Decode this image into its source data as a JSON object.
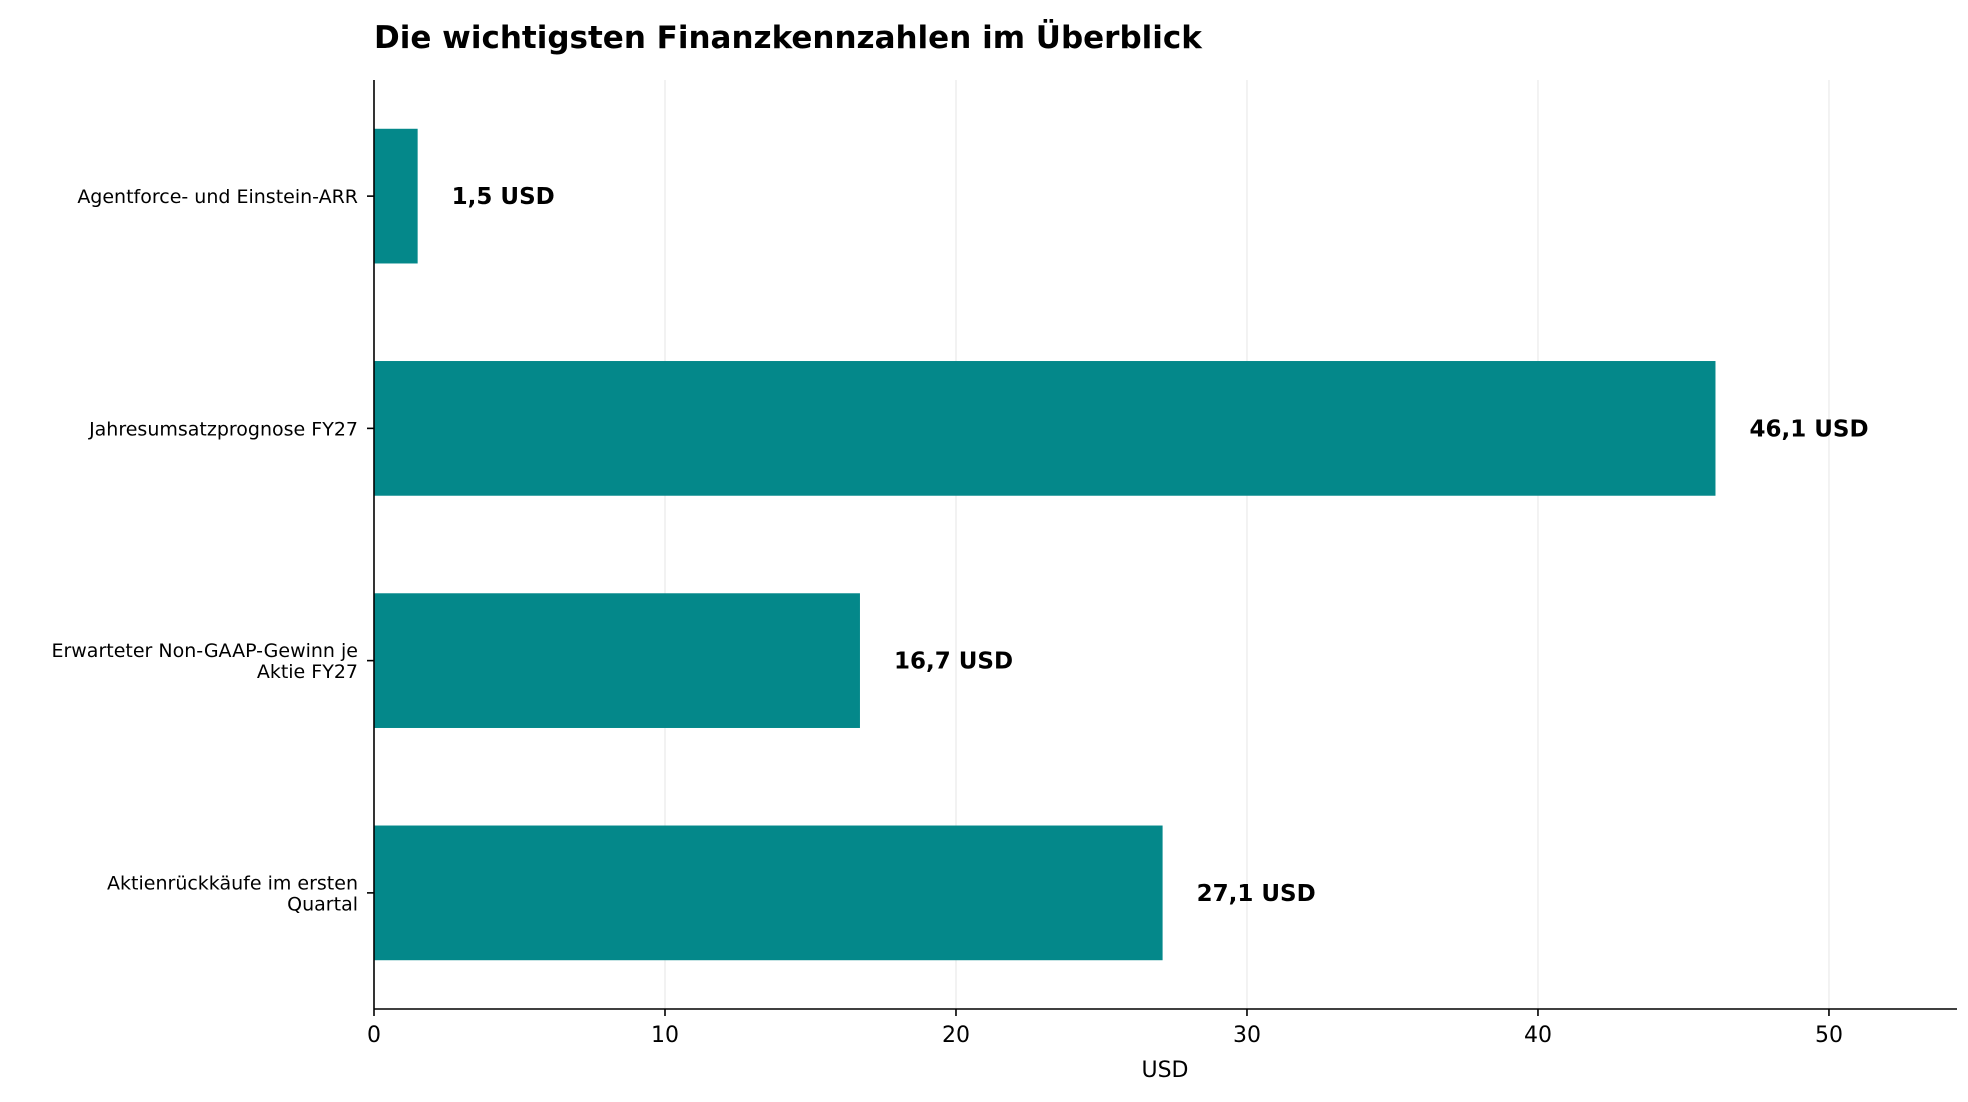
{
  "chart_data": {
    "type": "bar",
    "orientation": "horizontal",
    "title": "Die wichtigsten Finanzkennzahlen im Überblick",
    "xlabel": "USD",
    "ylabel": "",
    "categories": [
      [
        "Agentforce- und Einstein-ARR"
      ],
      [
        "Jahresumsatzprognose FY27"
      ],
      [
        "Erwarteter Non-GAAP-Gewinn je",
        "Aktie FY27"
      ],
      [
        "Aktienrückkäufe im ersten",
        "Quartal"
      ]
    ],
    "values": [
      1.5,
      46.1,
      16.7,
      27.1
    ],
    "data_labels": [
      "1,5 USD",
      "46,1 USD",
      "16,7 USD",
      "27,1 USD"
    ],
    "xlim": [
      0,
      54.4
    ],
    "xticks": [
      0,
      10,
      20,
      30,
      40,
      50
    ],
    "grid": "vertical",
    "bar_color": "#04888a",
    "grid_color": "#e6e6e6"
  }
}
